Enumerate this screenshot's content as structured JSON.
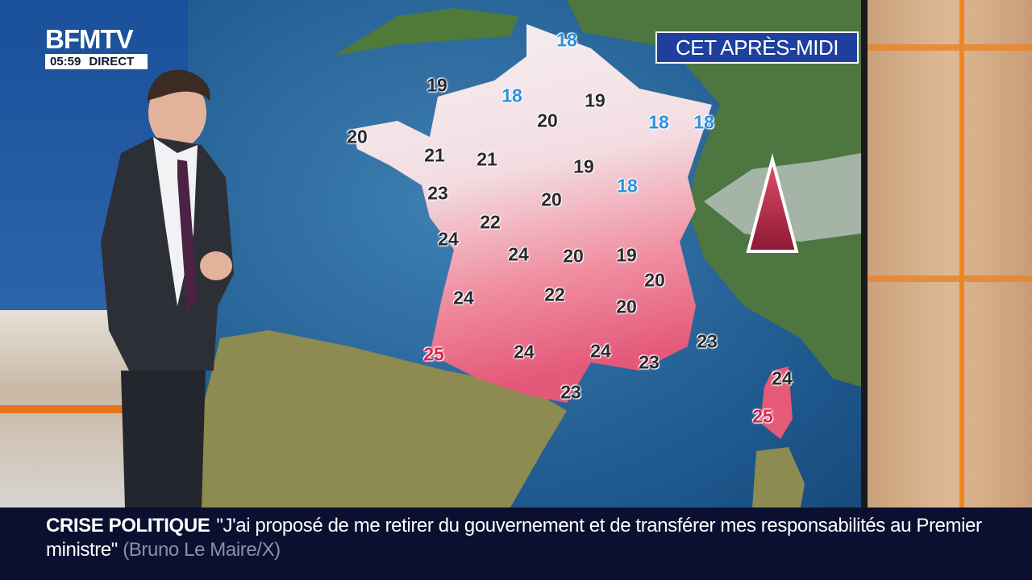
{
  "channel": {
    "logo": "BFMTV",
    "time": "05:59",
    "live_label": "DIRECT"
  },
  "map": {
    "title": "CET APRÈS-MIDI",
    "colors": {
      "cool": "#2f8fdc",
      "normal": "#2a2a2e",
      "hot": "#d8244c"
    },
    "temperatures": [
      "18",
      "19",
      "18",
      "19",
      "20",
      "18",
      "18",
      "20",
      "21",
      "21",
      "19",
      "18",
      "23",
      "20",
      "22",
      "24",
      "24",
      "20",
      "19",
      "20",
      "24",
      "22",
      "20",
      "25",
      "24",
      "24",
      "23",
      "23",
      "23",
      "24",
      "25"
    ],
    "symbol": "mountain-triangle-icon"
  },
  "ticker": {
    "label": "CRISE POLITIQUE",
    "text": "\"J'ai proposé de me retirer du gouvernement et de transférer mes responsabilités au Premier ministre\"",
    "source": "(Bruno Le Maire/X)"
  }
}
